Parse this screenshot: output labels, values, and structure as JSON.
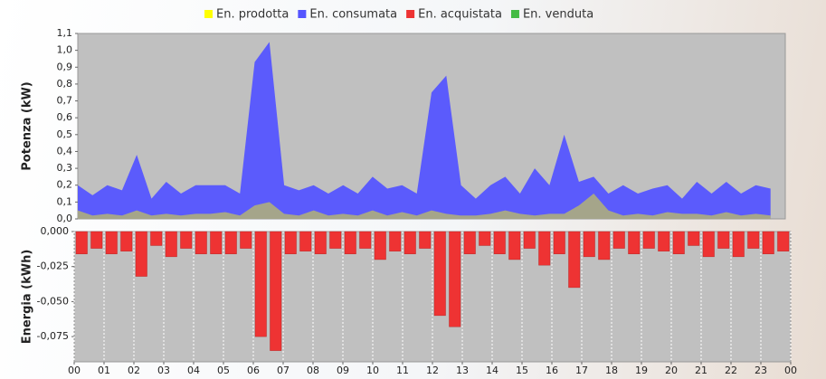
{
  "chart_data": [
    {
      "type": "area",
      "y_label": "Potenza (kW)",
      "x": [
        0,
        0.5,
        1,
        1.5,
        2,
        2.5,
        3,
        3.5,
        4,
        4.5,
        5,
        5.5,
        6,
        6.5,
        7,
        7.5,
        8,
        8.5,
        9,
        9.5,
        10,
        10.5,
        11,
        11.5,
        12,
        12.5,
        13,
        13.5,
        14,
        14.5,
        15,
        15.5,
        16,
        16.5,
        17,
        17.5,
        18,
        18.5,
        19,
        19.5,
        20,
        20.5,
        21,
        21.5,
        22,
        22.5,
        23,
        23.5
      ],
      "series": [
        {
          "name": "En. prodotta",
          "color": "#ffff00",
          "values": [
            0.05,
            0.02,
            0.03,
            0.02,
            0.05,
            0.02,
            0.03,
            0.02,
            0.03,
            0.03,
            0.04,
            0.02,
            0.08,
            0.1,
            0.03,
            0.02,
            0.05,
            0.02,
            0.03,
            0.02,
            0.05,
            0.02,
            0.04,
            0.02,
            0.05,
            0.03,
            0.02,
            0.02,
            0.03,
            0.05,
            0.03,
            0.02,
            0.03,
            0.03,
            0.08,
            0.15,
            0.05,
            0.02,
            0.03,
            0.02,
            0.04,
            0.03,
            0.03,
            0.02,
            0.04,
            0.02,
            0.03,
            0.02
          ]
        },
        {
          "name": "En. consumata",
          "color": "#5555ff",
          "values": [
            0.2,
            0.14,
            0.2,
            0.17,
            0.38,
            0.12,
            0.22,
            0.15,
            0.2,
            0.2,
            0.2,
            0.15,
            0.93,
            1.05,
            0.2,
            0.17,
            0.2,
            0.15,
            0.2,
            0.15,
            0.25,
            0.18,
            0.2,
            0.15,
            0.75,
            0.85,
            0.2,
            0.12,
            0.2,
            0.25,
            0.15,
            0.3,
            0.2,
            0.5,
            0.22,
            0.25,
            0.15,
            0.2,
            0.15,
            0.18,
            0.2,
            0.12,
            0.22,
            0.15,
            0.22,
            0.15,
            0.2,
            0.18
          ]
        }
      ],
      "xlim": [
        0,
        24
      ],
      "ylim": [
        0,
        1.1
      ],
      "yticks": [
        {
          "value": 0,
          "label": "0,0"
        },
        {
          "value": 0.1,
          "label": "0,1"
        },
        {
          "value": 0.2,
          "label": "0,2"
        },
        {
          "value": 0.3,
          "label": "0,3"
        },
        {
          "value": 0.4,
          "label": "0,4"
        },
        {
          "value": 0.5,
          "label": "0,5"
        },
        {
          "value": 0.6,
          "label": "0,6"
        },
        {
          "value": 0.7,
          "label": "0,7"
        },
        {
          "value": 0.8,
          "label": "0,8"
        },
        {
          "value": 0.9,
          "label": "0,9"
        },
        {
          "value": 1.0,
          "label": "1,0"
        },
        {
          "value": 1.1,
          "label": "1,1"
        }
      ],
      "grid": false
    },
    {
      "type": "bar",
      "y_label": "Energia (kWh)",
      "x": [
        0,
        0.5,
        1,
        1.5,
        2,
        2.5,
        3,
        3.5,
        4,
        4.5,
        5,
        5.5,
        6,
        6.5,
        7,
        7.5,
        8,
        8.5,
        9,
        9.5,
        10,
        10.5,
        11,
        11.5,
        12,
        12.5,
        13,
        13.5,
        14,
        14.5,
        15,
        15.5,
        16,
        16.5,
        17,
        17.5,
        18,
        18.5,
        19,
        19.5,
        20,
        20.5,
        21,
        21.5,
        22,
        22.5,
        23,
        23.5
      ],
      "series": [
        {
          "name": "En. acquistata",
          "color": "#ee3333",
          "values": [
            -0.016,
            -0.012,
            -0.016,
            -0.014,
            -0.032,
            -0.01,
            -0.018,
            -0.012,
            -0.016,
            -0.016,
            -0.016,
            -0.012,
            -0.075,
            -0.085,
            -0.016,
            -0.014,
            -0.016,
            -0.012,
            -0.016,
            -0.012,
            -0.02,
            -0.014,
            -0.016,
            -0.012,
            -0.06,
            -0.068,
            -0.016,
            -0.01,
            -0.016,
            -0.02,
            -0.012,
            -0.024,
            -0.016,
            -0.04,
            -0.018,
            -0.02,
            -0.012,
            -0.016,
            -0.012,
            -0.014,
            -0.016,
            -0.01,
            -0.018,
            -0.012,
            -0.018,
            -0.012,
            -0.016,
            -0.014
          ]
        },
        {
          "name": "En. venduta",
          "color": "#44bb44",
          "values": [
            null,
            null,
            null,
            null,
            null,
            null,
            null,
            null,
            null,
            null,
            null,
            null,
            null,
            null,
            null,
            null,
            null,
            null,
            null,
            null,
            null,
            null,
            null,
            null,
            null,
            null,
            null,
            null,
            null,
            null,
            null,
            null,
            null,
            null,
            null,
            null,
            null,
            null,
            null,
            null,
            null,
            null,
            null,
            null,
            null,
            null,
            null,
            null
          ]
        }
      ],
      "xlim": [
        0,
        24
      ],
      "ylim": [
        -0.093,
        0
      ],
      "yticks": [
        {
          "value": 0,
          "label": "0,000"
        },
        {
          "value": -0.025,
          "label": "-0,025"
        },
        {
          "value": -0.05,
          "label": "-0,050"
        },
        {
          "value": -0.075,
          "label": "-0,075"
        }
      ],
      "xticks": [
        {
          "value": 0,
          "label": "00"
        },
        {
          "value": 1,
          "label": "01"
        },
        {
          "value": 2,
          "label": "02"
        },
        {
          "value": 3,
          "label": "03"
        },
        {
          "value": 4,
          "label": "04"
        },
        {
          "value": 5,
          "label": "05"
        },
        {
          "value": 6,
          "label": "06"
        },
        {
          "value": 7,
          "label": "07"
        },
        {
          "value": 8,
          "label": "08"
        },
        {
          "value": 9,
          "label": "09"
        },
        {
          "value": 10,
          "label": "10"
        },
        {
          "value": 11,
          "label": "11"
        },
        {
          "value": 12,
          "label": "12"
        },
        {
          "value": 13,
          "label": "13"
        },
        {
          "value": 14,
          "label": "14"
        },
        {
          "value": 15,
          "label": "15"
        },
        {
          "value": 16,
          "label": "16"
        },
        {
          "value": 17,
          "label": "17"
        },
        {
          "value": 18,
          "label": "18"
        },
        {
          "value": 19,
          "label": "19"
        },
        {
          "value": 20,
          "label": "20"
        },
        {
          "value": 21,
          "label": "21"
        },
        {
          "value": 22,
          "label": "22"
        },
        {
          "value": 23,
          "label": "23"
        },
        {
          "value": 24,
          "label": "00"
        }
      ],
      "grid": true
    }
  ]
}
